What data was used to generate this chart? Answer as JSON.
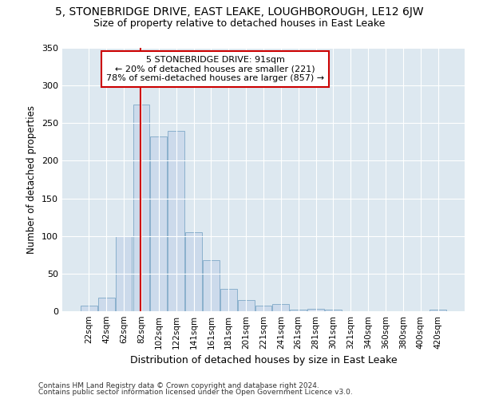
{
  "title": "5, STONEBRIDGE DRIVE, EAST LEAKE, LOUGHBOROUGH, LE12 6JW",
  "subtitle": "Size of property relative to detached houses in East Leake",
  "xlabel": "Distribution of detached houses by size in East Leake",
  "ylabel": "Number of detached properties",
  "bar_labels": [
    "22sqm",
    "42sqm",
    "62sqm",
    "82sqm",
    "102sqm",
    "122sqm",
    "141sqm",
    "161sqm",
    "181sqm",
    "201sqm",
    "221sqm",
    "241sqm",
    "261sqm",
    "281sqm",
    "301sqm",
    "321sqm",
    "340sqm",
    "360sqm",
    "380sqm",
    "400sqm",
    "420sqm"
  ],
  "bar_values": [
    7,
    18,
    100,
    275,
    232,
    240,
    105,
    68,
    30,
    15,
    7,
    10,
    2,
    3,
    2,
    0,
    0,
    0,
    0,
    0,
    2
  ],
  "bar_color": "#ccdaeb",
  "bar_edge_color": "#8ab0cc",
  "vline_color": "#cc0000",
  "annotation_line1": "5 STONEBRIDGE DRIVE: 91sqm",
  "annotation_line2": "← 20% of detached houses are smaller (221)",
  "annotation_line3": "78% of semi-detached houses are larger (857) →",
  "annotation_box_color": "#ffffff",
  "annotation_box_edge_color": "#cc0000",
  "ylim": [
    0,
    350
  ],
  "yticks": [
    0,
    50,
    100,
    150,
    200,
    250,
    300,
    350
  ],
  "background_color": "#dde8f0",
  "grid_color": "#ffffff",
  "footer1": "Contains HM Land Registry data © Crown copyright and database right 2024.",
  "footer2": "Contains public sector information licensed under the Open Government Licence v3.0."
}
